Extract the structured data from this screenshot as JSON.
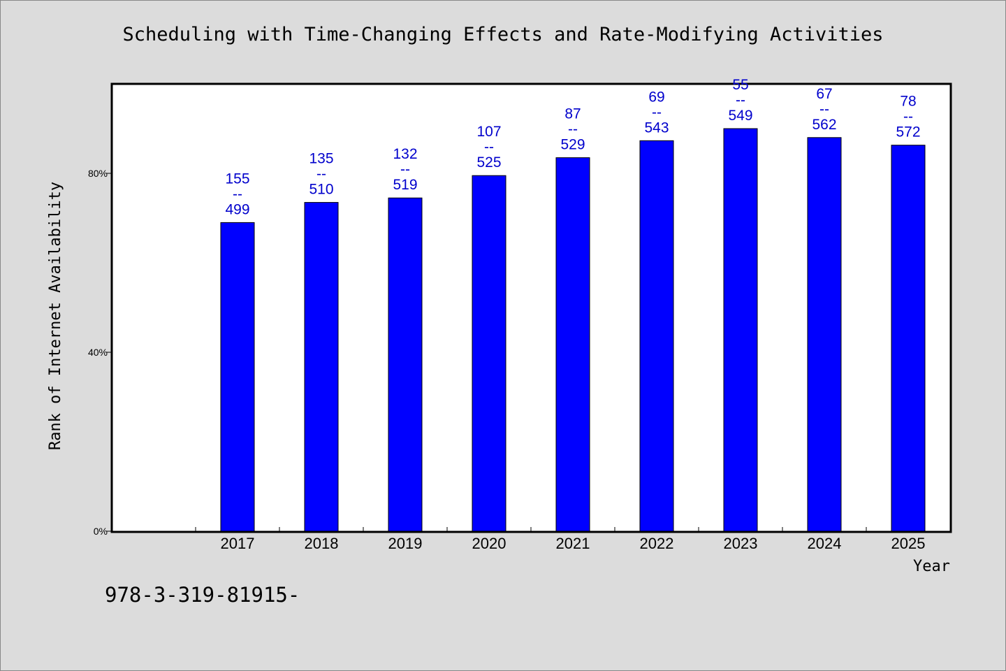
{
  "chart_data": {
    "type": "bar",
    "title": "Scheduling with Time-Changing Effects and Rate-Modifying Activities",
    "xlabel": "Year",
    "ylabel": "Rank of Internet Availability",
    "categories": [
      "2017",
      "2018",
      "2019",
      "2020",
      "2021",
      "2022",
      "2023",
      "2024",
      "2025"
    ],
    "values": [
      69,
      73.5,
      74.5,
      79.5,
      83.5,
      87.3,
      90,
      88,
      86.3
    ],
    "data_labels": [
      [
        "155",
        "--",
        "499"
      ],
      [
        "135",
        "--",
        "510"
      ],
      [
        "132",
        "--",
        "519"
      ],
      [
        "107",
        "--",
        "525"
      ],
      [
        "87",
        "--",
        "529"
      ],
      [
        "69",
        "--",
        "543"
      ],
      [
        "55",
        "--",
        "549"
      ],
      [
        "67",
        "--",
        "562"
      ],
      [
        "78",
        "--",
        "572"
      ]
    ],
    "yticks": [
      0,
      40,
      80
    ],
    "ytick_labels": [
      "0%",
      "40%",
      "80%"
    ],
    "ylim": [
      0,
      100
    ],
    "grid": false,
    "bar_color": "#0000ff",
    "label_color": "#0000cc"
  },
  "footer": {
    "isbn": "978-3-319-81915-"
  }
}
